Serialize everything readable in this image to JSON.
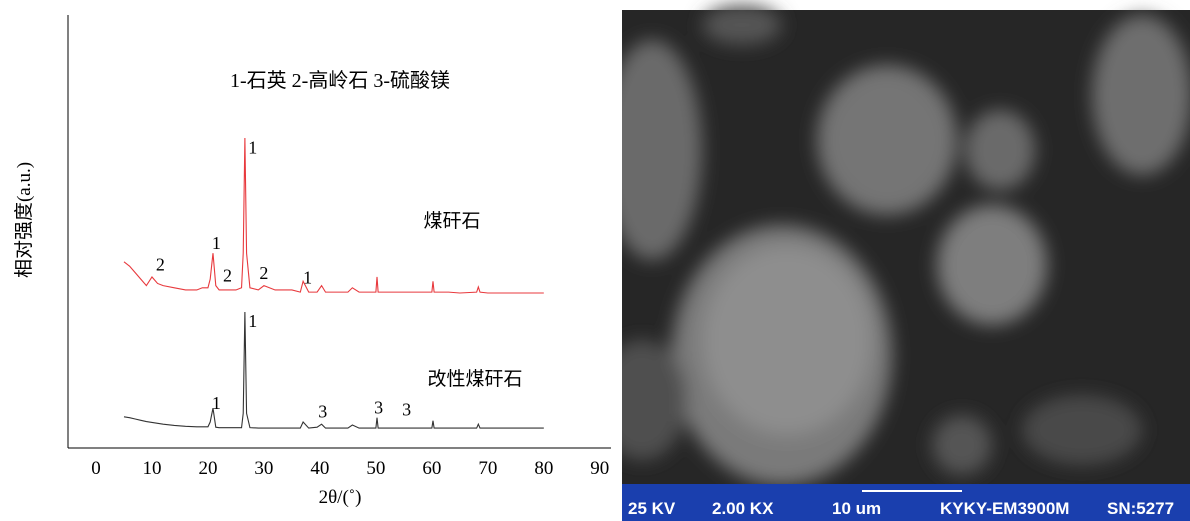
{
  "chart_data": {
    "type": "line",
    "title": "1-石英 2-高岭石 3-硫酸镁",
    "x_label": "2θ/(˚)",
    "y_label": "相对强度(a.u.)",
    "xlim": [
      -5,
      92
    ],
    "xticks": [
      0,
      10,
      20,
      30,
      40,
      50,
      60,
      70,
      80,
      90
    ],
    "ylim": [
      0,
      100
    ],
    "x": [
      5,
      6,
      7,
      8,
      9,
      10,
      11,
      12,
      14,
      16,
      18,
      19,
      20,
      20.4,
      20.9,
      21.4,
      22,
      24,
      25,
      26,
      26.3,
      26.6,
      26.9,
      27.5,
      29,
      30,
      32,
      35,
      36.5,
      37,
      38,
      39.5,
      40.3,
      41,
      42.5,
      45,
      45.8,
      47,
      50,
      50.2,
      50.4,
      52,
      55,
      57,
      60,
      60.2,
      60.4,
      63,
      65,
      68,
      68.3,
      68.6,
      70,
      74,
      76,
      80
    ],
    "series": [
      {
        "name": "煤矸石",
        "color": "#e8393d",
        "values": [
          43,
          42,
          40.5,
          39,
          37.5,
          39.5,
          38,
          37.5,
          37,
          36.5,
          36.5,
          37,
          37,
          39,
          45,
          37.5,
          36.5,
          36.5,
          36.5,
          37,
          45,
          71.6,
          45,
          37,
          36.5,
          37.5,
          36.5,
          36.5,
          36,
          38.5,
          36,
          36,
          37.5,
          36,
          36,
          36,
          37,
          36,
          36,
          39.5,
          36,
          36,
          36,
          36,
          36,
          38.5,
          36,
          36,
          35.8,
          36,
          37.2,
          36,
          35.8,
          35.8,
          35.8,
          35.8
        ]
      },
      {
        "name": "改性煤矸石",
        "color": "#333333",
        "values": [
          7.2,
          7,
          6.7,
          6.4,
          6.1,
          5.9,
          5.7,
          5.5,
          5.2,
          5,
          4.9,
          4.9,
          4.9,
          6,
          9.2,
          4.8,
          4.7,
          4.7,
          4.7,
          4.7,
          8,
          31.4,
          8,
          4.7,
          4.6,
          4.6,
          4.6,
          4.6,
          4.6,
          6,
          4.6,
          4.8,
          5.5,
          4.6,
          4.6,
          4.6,
          5.3,
          4.6,
          4.6,
          7,
          4.6,
          4.6,
          4.6,
          4.6,
          4.6,
          6.3,
          4.6,
          4.6,
          4.6,
          4.6,
          5.5,
          4.6,
          4.6,
          4.6,
          4.6,
          4.6
        ]
      }
    ],
    "annotations": [
      {
        "text": "2",
        "x": 11.5,
        "y": 41
      },
      {
        "text": "1",
        "x": 21.5,
        "y": 46
      },
      {
        "text": "2",
        "x": 23.5,
        "y": 38.5
      },
      {
        "text": "2",
        "x": 30,
        "y": 39
      },
      {
        "text": "1",
        "x": 37.8,
        "y": 38
      },
      {
        "text": "1",
        "x": 28,
        "y": 68
      },
      {
        "text": "1",
        "x": 28,
        "y": 28
      },
      {
        "text": "1",
        "x": 21.5,
        "y": 9
      },
      {
        "text": "3",
        "x": 40.5,
        "y": 7
      },
      {
        "text": "3",
        "x": 50.5,
        "y": 8
      },
      {
        "text": "3",
        "x": 55.5,
        "y": 7.5
      }
    ]
  },
  "sem_image": {
    "labels": [
      "25 KV",
      "2.00 KX",
      "10 um",
      "KYKY-EM3900M",
      "SN:5277"
    ]
  }
}
